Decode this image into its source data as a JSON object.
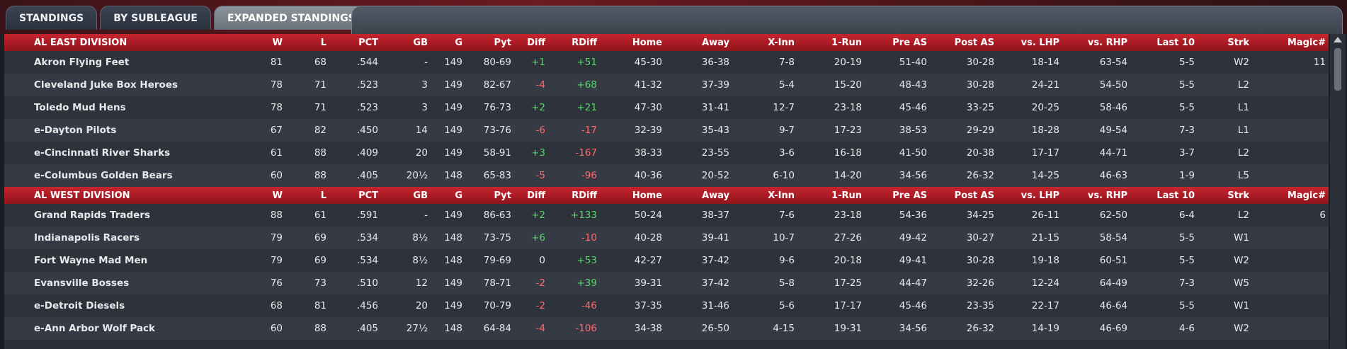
{
  "tabs": [
    "STANDINGS",
    "BY SUBLEAGUE",
    "EXPANDED STANDINGS"
  ],
  "columns": [
    "W",
    "L",
    "PCT",
    "GB",
    "G",
    "Pyt",
    "Diff",
    "RDiff",
    "Home",
    "Away",
    "X-Inn",
    "1-Run",
    "Pre AS",
    "Post AS",
    "vs. LHP",
    "vs. RHP",
    "Last 10",
    "Strk",
    "Magic#"
  ],
  "divisions": [
    {
      "name": "AL EAST DIVISION",
      "teams": [
        {
          "name": "Akron  Flying Feet",
          "W": "81",
          "L": "68",
          "PCT": ".544",
          "GB": "-",
          "G": "149",
          "Pyt": "80-69",
          "Diff": "+1",
          "RDiff": "+51",
          "Home": "45-30",
          "Away": "36-38",
          "XInn": "7-8",
          "OneRun": "20-19",
          "PreAS": "51-40",
          "PostAS": "30-28",
          "vsLHP": "18-14",
          "vsRHP": "63-54",
          "Last10": "5-5",
          "Strk": "W2",
          "Magic": "11"
        },
        {
          "name": "Cleveland Juke Box Heroes",
          "W": "78",
          "L": "71",
          "PCT": ".523",
          "GB": "3",
          "G": "149",
          "Pyt": "82-67",
          "Diff": "-4",
          "RDiff": "+68",
          "Home": "41-32",
          "Away": "37-39",
          "XInn": "5-4",
          "OneRun": "15-20",
          "PreAS": "48-43",
          "PostAS": "30-28",
          "vsLHP": "24-21",
          "vsRHP": "54-50",
          "Last10": "5-5",
          "Strk": "L2",
          "Magic": ""
        },
        {
          "name": "Toledo  Mud Hens",
          "W": "78",
          "L": "71",
          "PCT": ".523",
          "GB": "3",
          "G": "149",
          "Pyt": "76-73",
          "Diff": "+2",
          "RDiff": "+21",
          "Home": "47-30",
          "Away": "31-41",
          "XInn": "12-7",
          "OneRun": "23-18",
          "PreAS": "45-46",
          "PostAS": "33-25",
          "vsLHP": "20-25",
          "vsRHP": "58-46",
          "Last10": "5-5",
          "Strk": "L1",
          "Magic": ""
        },
        {
          "name": "e-Dayton Pilots",
          "W": "67",
          "L": "82",
          "PCT": ".450",
          "GB": "14",
          "G": "149",
          "Pyt": "73-76",
          "Diff": "-6",
          "RDiff": "-17",
          "Home": "32-39",
          "Away": "35-43",
          "XInn": "9-7",
          "OneRun": "17-23",
          "PreAS": "38-53",
          "PostAS": "29-29",
          "vsLHP": "18-28",
          "vsRHP": "49-54",
          "Last10": "7-3",
          "Strk": "L1",
          "Magic": ""
        },
        {
          "name": "e-Cincinnati River Sharks",
          "W": "61",
          "L": "88",
          "PCT": ".409",
          "GB": "20",
          "G": "149",
          "Pyt": "58-91",
          "Diff": "+3",
          "RDiff": "-167",
          "Home": "38-33",
          "Away": "23-55",
          "XInn": "3-6",
          "OneRun": "16-18",
          "PreAS": "41-50",
          "PostAS": "20-38",
          "vsLHP": "17-17",
          "vsRHP": "44-71",
          "Last10": "3-7",
          "Strk": "L2",
          "Magic": ""
        },
        {
          "name": "e-Columbus Golden Bears",
          "W": "60",
          "L": "88",
          "PCT": ".405",
          "GB": "20½",
          "G": "148",
          "Pyt": "65-83",
          "Diff": "-5",
          "RDiff": "-96",
          "Home": "40-36",
          "Away": "20-52",
          "XInn": "6-10",
          "OneRun": "14-20",
          "PreAS": "34-56",
          "PostAS": "26-32",
          "vsLHP": "14-25",
          "vsRHP": "46-63",
          "Last10": "1-9",
          "Strk": "L5",
          "Magic": ""
        }
      ]
    },
    {
      "name": "AL WEST DIVISION",
      "teams": [
        {
          "name": "Grand Rapids Traders",
          "W": "88",
          "L": "61",
          "PCT": ".591",
          "GB": "-",
          "G": "149",
          "Pyt": "86-63",
          "Diff": "+2",
          "RDiff": "+133",
          "Home": "50-24",
          "Away": "38-37",
          "XInn": "7-6",
          "OneRun": "23-18",
          "PreAS": "54-36",
          "PostAS": "34-25",
          "vsLHP": "26-11",
          "vsRHP": "62-50",
          "Last10": "6-4",
          "Strk": "L2",
          "Magic": "6"
        },
        {
          "name": "Indianapolis Racers",
          "W": "79",
          "L": "69",
          "PCT": ".534",
          "GB": "8½",
          "G": "148",
          "Pyt": "73-75",
          "Diff": "+6",
          "RDiff": "-10",
          "Home": "40-28",
          "Away": "39-41",
          "XInn": "10-7",
          "OneRun": "27-26",
          "PreAS": "49-42",
          "PostAS": "30-27",
          "vsLHP": "21-15",
          "vsRHP": "58-54",
          "Last10": "5-5",
          "Strk": "W1",
          "Magic": ""
        },
        {
          "name": "Fort Wayne Mad Men",
          "W": "79",
          "L": "69",
          "PCT": ".534",
          "GB": "8½",
          "G": "148",
          "Pyt": "79-69",
          "Diff": "0",
          "RDiff": "+53",
          "Home": "42-27",
          "Away": "37-42",
          "XInn": "9-6",
          "OneRun": "20-18",
          "PreAS": "49-41",
          "PostAS": "30-28",
          "vsLHP": "19-18",
          "vsRHP": "60-51",
          "Last10": "5-5",
          "Strk": "W2",
          "Magic": ""
        },
        {
          "name": "Evansville Bosses",
          "W": "76",
          "L": "73",
          "PCT": ".510",
          "GB": "12",
          "G": "149",
          "Pyt": "78-71",
          "Diff": "-2",
          "RDiff": "+39",
          "Home": "39-31",
          "Away": "37-42",
          "XInn": "5-8",
          "OneRun": "17-25",
          "PreAS": "44-47",
          "PostAS": "32-26",
          "vsLHP": "12-24",
          "vsRHP": "64-49",
          "Last10": "7-3",
          "Strk": "W5",
          "Magic": ""
        },
        {
          "name": "e-Detroit Diesels",
          "W": "68",
          "L": "81",
          "PCT": ".456",
          "GB": "20",
          "G": "149",
          "Pyt": "70-79",
          "Diff": "-2",
          "RDiff": "-46",
          "Home": "37-35",
          "Away": "31-46",
          "XInn": "5-6",
          "OneRun": "17-17",
          "PreAS": "45-46",
          "PostAS": "23-35",
          "vsLHP": "22-17",
          "vsRHP": "46-64",
          "Last10": "5-5",
          "Strk": "W1",
          "Magic": ""
        },
        {
          "name": "e-Ann Arbor Wolf Pack",
          "W": "60",
          "L": "88",
          "PCT": ".405",
          "GB": "27½",
          "G": "148",
          "Pyt": "64-84",
          "Diff": "-4",
          "RDiff": "-106",
          "Home": "34-38",
          "Away": "26-50",
          "XInn": "4-15",
          "OneRun": "19-31",
          "PreAS": "34-56",
          "PostAS": "26-32",
          "vsLHP": "14-19",
          "vsRHP": "46-69",
          "Last10": "4-6",
          "Strk": "W2",
          "Magic": ""
        }
      ]
    }
  ],
  "colors": {
    "accent_red": "#c7252f",
    "positive": "#57d66a",
    "negative": "#ff6b6b"
  }
}
